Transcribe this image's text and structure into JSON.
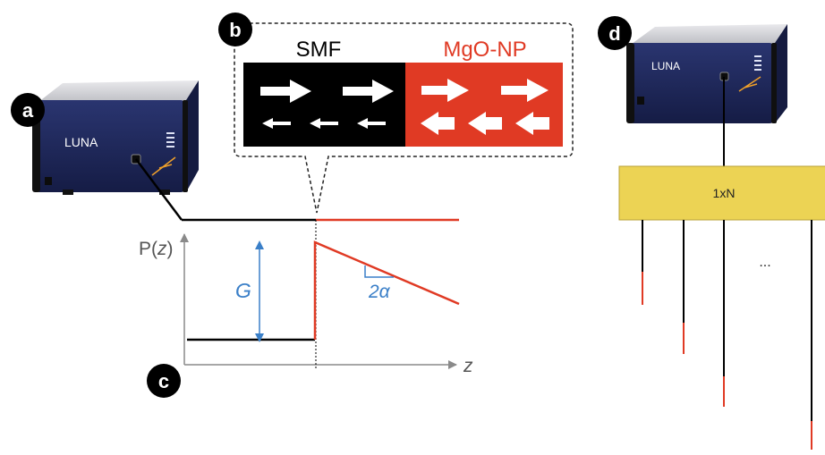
{
  "panels": {
    "a": {
      "letter": "a"
    },
    "b": {
      "letter": "b",
      "left_title": "SMF",
      "right_title": "MgO-NP"
    },
    "c": {
      "letter": "c"
    },
    "d": {
      "letter": "d"
    }
  },
  "instrument": {
    "brand": "LUNA"
  },
  "plot": {
    "y_label_prefix": "P(",
    "y_label_var": "z",
    "y_label_suffix": ")",
    "x_label": "z",
    "gain_label": "G",
    "slope_label": "2α"
  },
  "switch": {
    "label": "1xN",
    "ellipsis": "..."
  },
  "colors": {
    "smf": "#000000",
    "mgo": "#e03a24",
    "switch_fill": "#ecd354",
    "switch_stroke": "#b9a036",
    "annot_blue": "#3a7fc8",
    "axis_gray": "#8a8a8a",
    "device_blue": "#1f2a5c"
  }
}
